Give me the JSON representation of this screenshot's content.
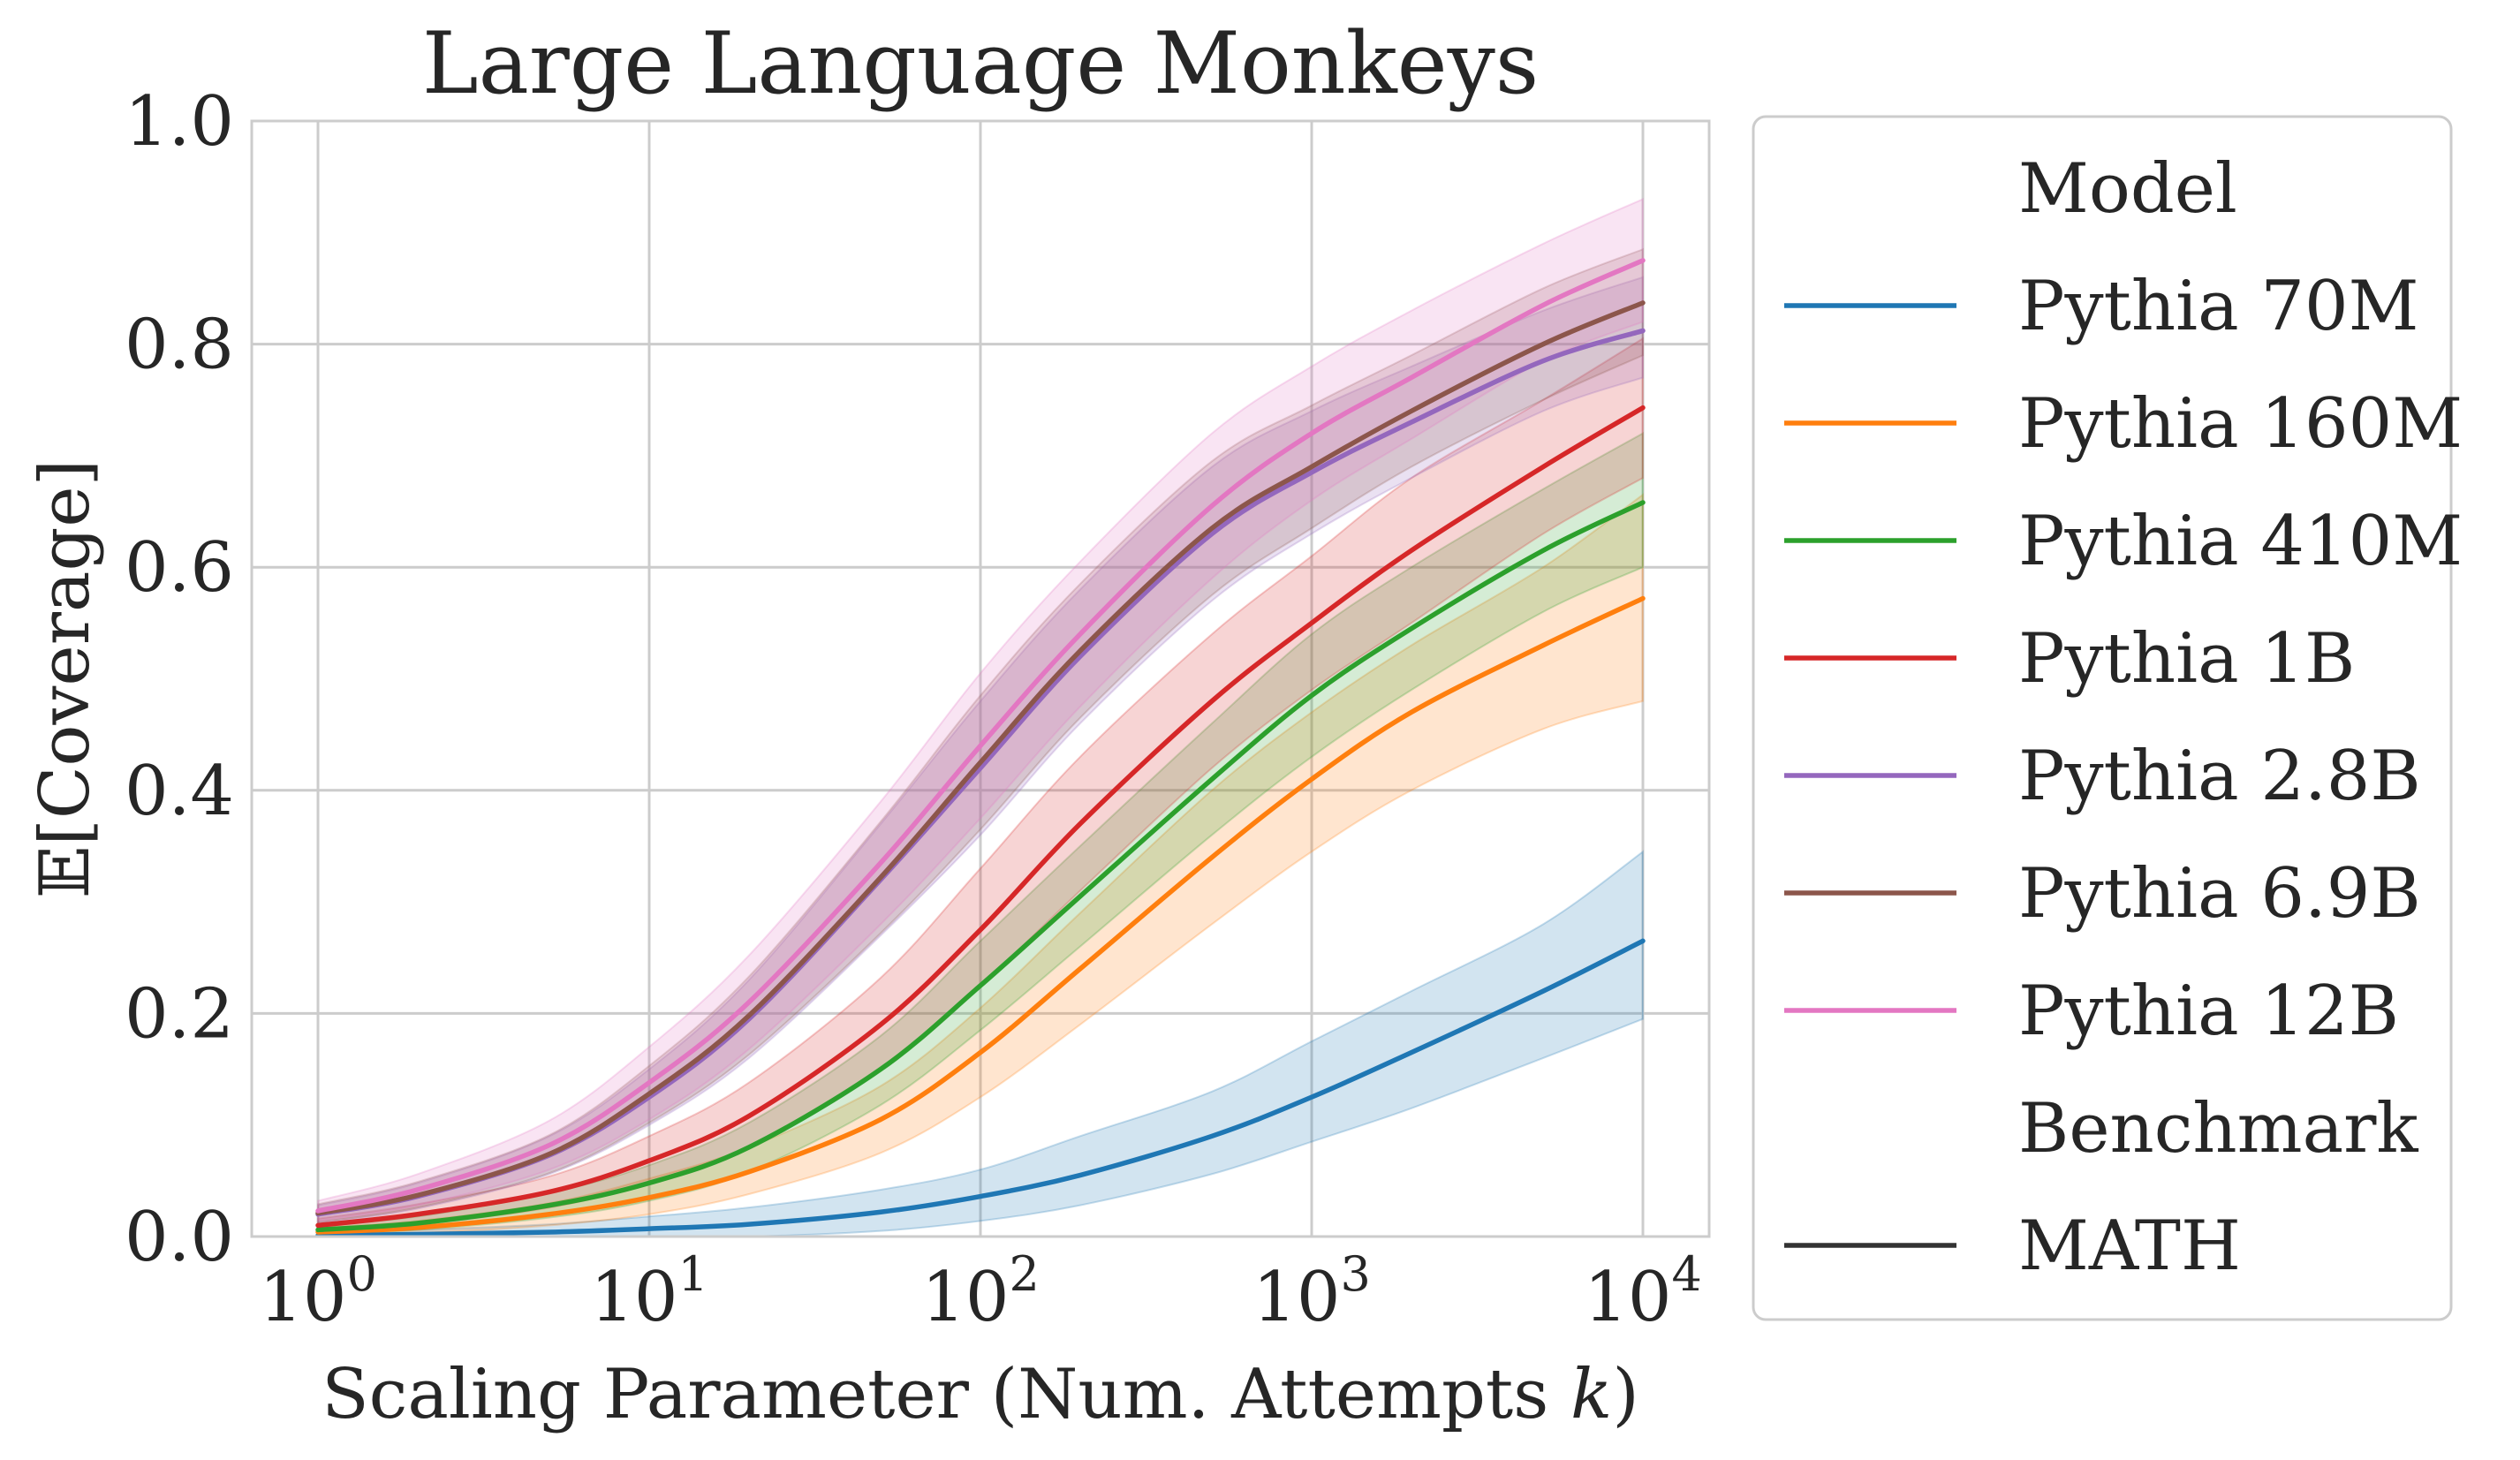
{
  "chart_data": {
    "type": "line",
    "title": "Large Language Monkeys",
    "xlabel": "Scaling Parameter (Num. Attempts ",
    "xlabel_var": "k",
    "xlabel_close": ")",
    "ylabel": "𝔼[Coverage]",
    "x_scale": "log",
    "xlim": [
      1,
      10000
    ],
    "ylim": [
      0.0,
      1.0
    ],
    "x_ticks": [
      {
        "base": "10",
        "exp": "0",
        "value": 1
      },
      {
        "base": "10",
        "exp": "1",
        "value": 10
      },
      {
        "base": "10",
        "exp": "2",
        "value": 100
      },
      {
        "base": "10",
        "exp": "3",
        "value": 1000
      },
      {
        "base": "10",
        "exp": "4",
        "value": 10000
      }
    ],
    "y_ticks": [
      "0.0",
      "0.2",
      "0.4",
      "0.6",
      "0.8",
      "1.0"
    ],
    "grid": true,
    "x": [
      1,
      2,
      5,
      10,
      20,
      50,
      100,
      200,
      500,
      1000,
      2000,
      5000,
      10000
    ],
    "series": [
      {
        "name": "Pythia 70M",
        "color": "#1f77b4",
        "values": [
          0.001,
          0.002,
          0.004,
          0.007,
          0.011,
          0.022,
          0.036,
          0.055,
          0.09,
          0.125,
          0.165,
          0.22,
          0.265
        ],
        "lower": [
          0.0,
          0.0,
          0.0,
          0.0,
          0.0,
          0.005,
          0.014,
          0.028,
          0.056,
          0.085,
          0.115,
          0.16,
          0.195
        ],
        "upper": [
          0.003,
          0.006,
          0.011,
          0.018,
          0.026,
          0.042,
          0.06,
          0.09,
          0.13,
          0.175,
          0.22,
          0.28,
          0.345
        ]
      },
      {
        "name": "Pythia 160M",
        "color": "#ff7f0e",
        "values": [
          0.004,
          0.008,
          0.02,
          0.035,
          0.058,
          0.105,
          0.165,
          0.24,
          0.34,
          0.41,
          0.47,
          0.53,
          0.572
        ],
        "lower": [
          0.001,
          0.003,
          0.01,
          0.02,
          0.038,
          0.075,
          0.125,
          0.19,
          0.28,
          0.345,
          0.4,
          0.455,
          0.48
        ],
        "upper": [
          0.008,
          0.014,
          0.03,
          0.052,
          0.08,
          0.135,
          0.205,
          0.29,
          0.4,
          0.47,
          0.53,
          0.6,
          0.665
        ]
      },
      {
        "name": "Pythia 410M",
        "color": "#2ca02c",
        "values": [
          0.006,
          0.012,
          0.028,
          0.048,
          0.08,
          0.15,
          0.225,
          0.305,
          0.41,
          0.485,
          0.545,
          0.615,
          0.658
        ],
        "lower": [
          0.002,
          0.006,
          0.017,
          0.032,
          0.058,
          0.118,
          0.185,
          0.26,
          0.36,
          0.43,
          0.49,
          0.56,
          0.6
        ],
        "upper": [
          0.01,
          0.018,
          0.039,
          0.064,
          0.102,
          0.18,
          0.265,
          0.35,
          0.46,
          0.54,
          0.6,
          0.67,
          0.72
        ]
      },
      {
        "name": "Pythia 1B",
        "color": "#d62728",
        "values": [
          0.01,
          0.02,
          0.04,
          0.068,
          0.108,
          0.19,
          0.275,
          0.37,
          0.48,
          0.55,
          0.615,
          0.69,
          0.743
        ],
        "lower": [
          0.004,
          0.011,
          0.026,
          0.048,
          0.08,
          0.15,
          0.225,
          0.31,
          0.42,
          0.49,
          0.55,
          0.63,
          0.68
        ],
        "upper": [
          0.016,
          0.029,
          0.054,
          0.09,
          0.138,
          0.232,
          0.33,
          0.43,
          0.54,
          0.61,
          0.68,
          0.75,
          0.805
        ]
      },
      {
        "name": "Pythia 2.8B",
        "color": "#9467bd",
        "values": [
          0.02,
          0.036,
          0.073,
          0.125,
          0.195,
          0.32,
          0.42,
          0.52,
          0.63,
          0.685,
          0.73,
          0.785,
          0.812
        ],
        "lower": [
          0.012,
          0.025,
          0.056,
          0.1,
          0.16,
          0.27,
          0.36,
          0.46,
          0.57,
          0.63,
          0.68,
          0.74,
          0.77
        ],
        "upper": [
          0.028,
          0.048,
          0.09,
          0.15,
          0.23,
          0.37,
          0.48,
          0.58,
          0.69,
          0.74,
          0.78,
          0.83,
          0.86
        ]
      },
      {
        "name": "Pythia 6.9B",
        "color": "#8c564b",
        "values": [
          0.021,
          0.037,
          0.074,
          0.128,
          0.198,
          0.322,
          0.425,
          0.525,
          0.635,
          0.69,
          0.74,
          0.8,
          0.837
        ],
        "lower": [
          0.013,
          0.026,
          0.057,
          0.102,
          0.163,
          0.272,
          0.365,
          0.465,
          0.575,
          0.635,
          0.69,
          0.75,
          0.79
        ],
        "upper": [
          0.029,
          0.049,
          0.091,
          0.153,
          0.233,
          0.372,
          0.485,
          0.585,
          0.695,
          0.745,
          0.79,
          0.85,
          0.885
        ]
      },
      {
        "name": "Pythia 12B",
        "color": "#e377c2",
        "values": [
          0.023,
          0.042,
          0.082,
          0.138,
          0.21,
          0.335,
          0.44,
          0.54,
          0.655,
          0.72,
          0.77,
          0.835,
          0.875
        ],
        "lower": [
          0.014,
          0.028,
          0.06,
          0.105,
          0.168,
          0.28,
          0.375,
          0.475,
          0.59,
          0.66,
          0.715,
          0.785,
          0.82
        ],
        "upper": [
          0.032,
          0.056,
          0.104,
          0.17,
          0.252,
          0.39,
          0.505,
          0.605,
          0.72,
          0.78,
          0.83,
          0.89,
          0.93
        ]
      }
    ],
    "legend": {
      "position": "outside-right",
      "entries": [
        {
          "kind": "header",
          "label": "Model"
        },
        {
          "kind": "series",
          "label": "Pythia 70M",
          "color": "#1f77b4"
        },
        {
          "kind": "series",
          "label": "Pythia 160M",
          "color": "#ff7f0e"
        },
        {
          "kind": "series",
          "label": "Pythia 410M",
          "color": "#2ca02c"
        },
        {
          "kind": "series",
          "label": "Pythia 1B",
          "color": "#d62728"
        },
        {
          "kind": "series",
          "label": "Pythia 2.8B",
          "color": "#9467bd"
        },
        {
          "kind": "series",
          "label": "Pythia 6.9B",
          "color": "#8c564b"
        },
        {
          "kind": "series",
          "label": "Pythia 12B",
          "color": "#e377c2"
        },
        {
          "kind": "header",
          "label": "Benchmark"
        },
        {
          "kind": "series",
          "label": "MATH",
          "color": "#333333"
        }
      ]
    }
  }
}
